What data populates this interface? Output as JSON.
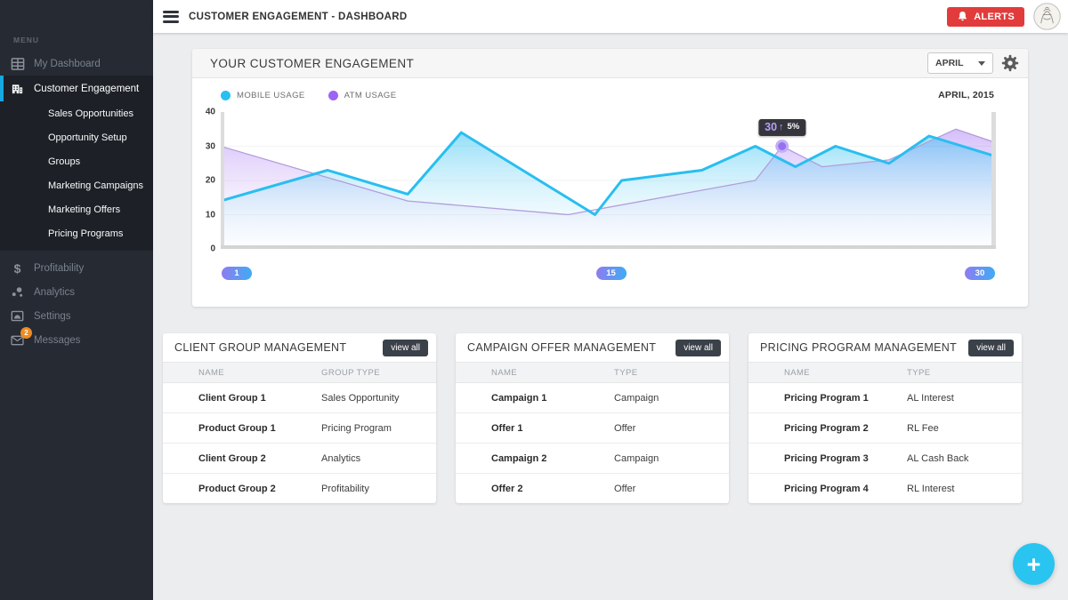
{
  "topbar": {
    "title": "CUSTOMER ENGAGEMENT - DASHBOARD",
    "alerts_label": "ALERTS"
  },
  "sidebar": {
    "menu_label": "MENU",
    "items": [
      {
        "label": "My Dashboard",
        "icon": "dashboard-icon",
        "active": false
      },
      {
        "label": "Customer Engagement",
        "icon": "building-icon",
        "active": true,
        "children": [
          "Sales Opportunities",
          "Opportunity Setup",
          "Groups",
          "Marketing Campaigns",
          "Marketing Offers",
          "Pricing Programs"
        ]
      },
      {
        "label": "Profitability",
        "icon": "dollar-icon",
        "active": false
      },
      {
        "label": "Analytics",
        "icon": "bubbles-icon",
        "active": false
      },
      {
        "label": "Settings",
        "icon": "image-icon",
        "active": false
      },
      {
        "label": "Messages",
        "icon": "envelope-icon",
        "active": false,
        "badge": "2"
      }
    ]
  },
  "engagement_card": {
    "title": "YOUR CUSTOMER ENGAGEMENT",
    "month_select": "APRIL",
    "period_label": "APRIL, 2015",
    "legend": [
      {
        "label": "MOBILE USAGE",
        "color": "#29c0f0"
      },
      {
        "label": "ATM USAGE",
        "color": "#9c64f4"
      }
    ]
  },
  "chart_data": {
    "type": "area",
    "title": "YOUR CUSTOMER ENGAGEMENT",
    "subtitle": "APRIL, 2015",
    "grid": false,
    "legend_position": "top-left",
    "x_axis": {
      "min": 1,
      "max": 30,
      "ticks": [
        {
          "label": "1",
          "day": 1.6
        },
        {
          "label": "15",
          "day": 15.6
        },
        {
          "label": "30",
          "day": 29.4
        }
      ]
    },
    "y_axis": {
      "min": 0,
      "max": 40,
      "ticks": [
        40,
        30,
        20,
        10,
        0
      ]
    },
    "series": [
      {
        "name": "MOBILE USAGE",
        "line_color": "#29bef0",
        "fill_top": "rgba(41,190,240,0.50)",
        "fill_bottom": "rgba(225,245,254,0.06)",
        "line_width": 3,
        "points": [
          [
            1,
            14
          ],
          [
            5,
            23
          ],
          [
            8,
            16
          ],
          [
            10,
            34
          ],
          [
            15,
            10
          ],
          [
            16,
            20
          ],
          [
            19,
            23
          ],
          [
            21,
            30
          ],
          [
            22.5,
            24
          ],
          [
            24,
            30
          ],
          [
            26,
            25
          ],
          [
            27.5,
            33
          ],
          [
            30,
            27
          ]
        ]
      },
      {
        "name": "ATM USAGE",
        "line_color": "#b39ddb",
        "fill_top": "rgba(156,100,244,0.42)",
        "fill_bottom": "rgba(237,231,246,0.06)",
        "line_width": 1.3,
        "points": [
          [
            1,
            30
          ],
          [
            8,
            14
          ],
          [
            14,
            10
          ],
          [
            21,
            20
          ],
          [
            22,
            30
          ],
          [
            23.5,
            24
          ],
          [
            26,
            26
          ],
          [
            28.5,
            35
          ],
          [
            30,
            31
          ]
        ]
      }
    ],
    "tooltip": {
      "day": 22,
      "value": 30,
      "label": "30",
      "arrow": "↑",
      "delta": "5%",
      "dot_color": "#9672ee",
      "dot_ring": "#c3aef8"
    }
  },
  "cards": [
    {
      "title": "CLIENT GROUP MANAGEMENT",
      "view_all": "view all",
      "columns": [
        "NAME",
        "GROUP TYPE"
      ],
      "rows": [
        [
          "Client Group 1",
          "Sales Opportunity"
        ],
        [
          "Product Group 1",
          "Pricing Program"
        ],
        [
          "Client Group 2",
          "Analytics"
        ],
        [
          "Product Group 2",
          "Profitability"
        ]
      ]
    },
    {
      "title": "CAMPAIGN OFFER MANAGEMENT",
      "view_all": "view all",
      "columns": [
        "NAME",
        "TYPE"
      ],
      "rows": [
        [
          "Campaign 1",
          "Campaign"
        ],
        [
          "Offer 1",
          "Offer"
        ],
        [
          "Campaign 2",
          "Campaign"
        ],
        [
          "Offer 2",
          "Offer"
        ]
      ]
    },
    {
      "title": "PRICING PROGRAM MANAGEMENT",
      "view_all": "view all",
      "columns": [
        "NAME",
        "TYPE"
      ],
      "rows": [
        [
          "Pricing Program 1",
          "AL Interest"
        ],
        [
          "Pricing Program 2",
          "RL Fee"
        ],
        [
          "Pricing Program 3",
          "AL Cash Back"
        ],
        [
          "Pricing Program 4",
          "RL Interest"
        ]
      ]
    }
  ],
  "fab": {
    "label": "+"
  },
  "colors": {
    "sidebar_bg": "#262b33",
    "sidebar_active_bg": "#1d2127",
    "sidebar_accent": "#17a7e2",
    "alerts_red": "#e23b3b",
    "fab_cyan": "#29c4f0",
    "badge_orange": "#ee8c22",
    "pill_gradient": [
      "#8f7cf0",
      "#3fabf4"
    ]
  }
}
